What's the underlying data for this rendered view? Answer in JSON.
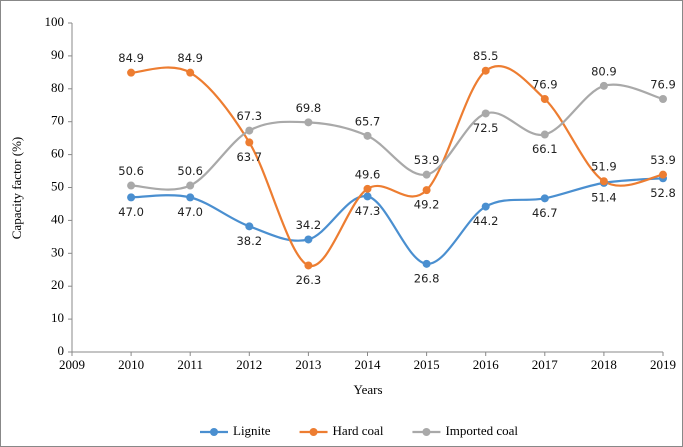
{
  "chart_data": {
    "type": "line",
    "xlabel": "Years",
    "ylabel": "Capacity factor (%)",
    "x": [
      2010,
      2011,
      2012,
      2013,
      2014,
      2015,
      2016,
      2017,
      2018,
      2019
    ],
    "xlim": [
      2009,
      2019
    ],
    "xticks": [
      2009,
      2010,
      2011,
      2012,
      2013,
      2014,
      2015,
      2016,
      2017,
      2018,
      2019
    ],
    "ylim": [
      0,
      100
    ],
    "yticks": [
      0,
      10,
      20,
      30,
      40,
      50,
      60,
      70,
      80,
      90,
      100
    ],
    "legend": "bottom",
    "series": [
      {
        "name": "Lignite",
        "color": "#4a8fd0",
        "values": [
          47.0,
          47.0,
          38.2,
          34.2,
          47.3,
          26.8,
          44.2,
          46.7,
          51.4,
          52.8
        ],
        "value_labels": [
          "47.0",
          "47.0",
          "38.2",
          "34.2",
          "47.3",
          "26.8",
          "44.2",
          "46.7",
          "51.4",
          "52.8"
        ]
      },
      {
        "name": "Hard coal",
        "color": "#ed7d31",
        "values": [
          84.9,
          84.9,
          63.7,
          26.3,
          49.6,
          49.2,
          85.5,
          76.9,
          51.9,
          53.9
        ],
        "value_labels": [
          "84.9",
          "84.9",
          "63.7",
          "26.3",
          "49.6",
          "49.2",
          "85.5",
          "76.9",
          "51.9",
          "53.9"
        ]
      },
      {
        "name": "Imported coal",
        "color": "#a9a9a9",
        "values": [
          50.6,
          50.6,
          67.3,
          69.8,
          65.7,
          53.9,
          72.5,
          66.1,
          80.9,
          76.9
        ],
        "value_labels": [
          "50.6",
          "50.6",
          "67.3",
          "69.8",
          "65.7",
          "53.9",
          "72.5",
          "66.1",
          "80.9",
          "76.9"
        ]
      }
    ]
  }
}
